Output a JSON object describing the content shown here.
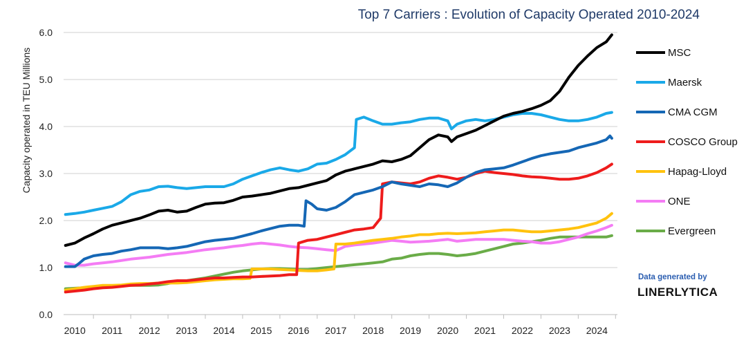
{
  "chart_data": {
    "type": "line",
    "title": "Top 7 Carriers : Evolution of Capacity Operated 2010-2024",
    "ylabel": "Capacity operated in TEU Millions",
    "xlabel": "",
    "ylim": [
      0,
      6
    ],
    "xlim": [
      2009.7,
      2024.55
    ],
    "yticks": [
      "0.0",
      "1.0",
      "2.0",
      "3.0",
      "4.0",
      "5.0",
      "6.0"
    ],
    "xticks": [
      "2010",
      "2011",
      "2012",
      "2013",
      "2014",
      "2015",
      "2016",
      "2017",
      "2018",
      "2019",
      "2020",
      "2021",
      "2022",
      "2023",
      "2024"
    ],
    "grid": "horizontal",
    "legend_position": "right",
    "series": [
      {
        "name": "MSC",
        "color": "#000000",
        "x": [
          2009.75,
          2010.0,
          2010.25,
          2010.5,
          2010.75,
          2011.0,
          2011.25,
          2011.5,
          2011.75,
          2012.0,
          2012.25,
          2012.5,
          2012.75,
          2013.0,
          2013.25,
          2013.5,
          2013.75,
          2014.0,
          2014.25,
          2014.5,
          2014.75,
          2015.0,
          2015.25,
          2015.5,
          2015.75,
          2016.0,
          2016.25,
          2016.5,
          2016.75,
          2017.0,
          2017.25,
          2017.5,
          2017.75,
          2018.0,
          2018.25,
          2018.5,
          2018.75,
          2019.0,
          2019.25,
          2019.5,
          2019.75,
          2020.0,
          2020.1,
          2020.25,
          2020.5,
          2020.75,
          2021.0,
          2021.25,
          2021.5,
          2021.75,
          2022.0,
          2022.25,
          2022.5,
          2022.75,
          2023.0,
          2023.25,
          2023.5,
          2023.75,
          2024.0,
          2024.25,
          2024.4
        ],
        "values": [
          1.47,
          1.52,
          1.63,
          1.72,
          1.82,
          1.9,
          1.95,
          2.0,
          2.05,
          2.12,
          2.2,
          2.22,
          2.18,
          2.2,
          2.28,
          2.35,
          2.37,
          2.38,
          2.43,
          2.5,
          2.52,
          2.55,
          2.58,
          2.63,
          2.68,
          2.7,
          2.75,
          2.8,
          2.85,
          2.97,
          3.05,
          3.1,
          3.15,
          3.2,
          3.27,
          3.25,
          3.3,
          3.38,
          3.55,
          3.72,
          3.82,
          3.78,
          3.68,
          3.78,
          3.85,
          3.92,
          4.02,
          4.12,
          4.22,
          4.28,
          4.32,
          4.38,
          4.45,
          4.55,
          4.75,
          5.05,
          5.3,
          5.5,
          5.68,
          5.8,
          5.95
        ]
      },
      {
        "name": "Maersk",
        "color": "#1aa9e8",
        "x": [
          2009.75,
          2010.0,
          2010.25,
          2010.5,
          2010.75,
          2011.0,
          2011.25,
          2011.5,
          2011.75,
          2012.0,
          2012.25,
          2012.5,
          2012.75,
          2013.0,
          2013.25,
          2013.5,
          2013.75,
          2014.0,
          2014.25,
          2014.5,
          2014.75,
          2015.0,
          2015.25,
          2015.5,
          2015.75,
          2016.0,
          2016.25,
          2016.5,
          2016.75,
          2017.0,
          2017.25,
          2017.5,
          2017.55,
          2017.75,
          2018.0,
          2018.25,
          2018.5,
          2018.75,
          2019.0,
          2019.25,
          2019.5,
          2019.75,
          2020.0,
          2020.1,
          2020.25,
          2020.5,
          2020.75,
          2021.0,
          2021.25,
          2021.5,
          2021.75,
          2022.0,
          2022.25,
          2022.5,
          2022.75,
          2023.0,
          2023.25,
          2023.5,
          2023.75,
          2024.0,
          2024.25,
          2024.4
        ],
        "values": [
          2.13,
          2.15,
          2.18,
          2.22,
          2.26,
          2.3,
          2.4,
          2.55,
          2.62,
          2.65,
          2.72,
          2.73,
          2.7,
          2.68,
          2.7,
          2.72,
          2.72,
          2.72,
          2.78,
          2.88,
          2.95,
          3.02,
          3.08,
          3.12,
          3.08,
          3.05,
          3.1,
          3.2,
          3.22,
          3.3,
          3.4,
          3.55,
          4.15,
          4.2,
          4.12,
          4.05,
          4.05,
          4.08,
          4.1,
          4.15,
          4.18,
          4.18,
          4.12,
          3.95,
          4.05,
          4.12,
          4.15,
          4.12,
          4.15,
          4.2,
          4.25,
          4.28,
          4.28,
          4.25,
          4.2,
          4.15,
          4.12,
          4.12,
          4.15,
          4.2,
          4.28,
          4.3
        ]
      },
      {
        "name": "CMA CGM",
        "color": "#1567b5",
        "x": [
          2009.75,
          2010.0,
          2010.1,
          2010.25,
          2010.5,
          2010.75,
          2011.0,
          2011.25,
          2011.5,
          2011.75,
          2012.0,
          2012.25,
          2012.5,
          2012.75,
          2013.0,
          2013.25,
          2013.5,
          2013.75,
          2014.0,
          2014.25,
          2014.5,
          2014.75,
          2015.0,
          2015.25,
          2015.5,
          2015.75,
          2016.0,
          2016.15,
          2016.2,
          2016.35,
          2016.5,
          2016.75,
          2017.0,
          2017.25,
          2017.5,
          2017.75,
          2018.0,
          2018.25,
          2018.5,
          2018.75,
          2019.0,
          2019.25,
          2019.5,
          2019.75,
          2020.0,
          2020.25,
          2020.5,
          2020.75,
          2021.0,
          2021.25,
          2021.5,
          2021.75,
          2022.0,
          2022.25,
          2022.5,
          2022.75,
          2023.0,
          2023.25,
          2023.5,
          2023.75,
          2024.0,
          2024.25,
          2024.35,
          2024.4
        ],
        "values": [
          1.02,
          1.02,
          1.08,
          1.18,
          1.25,
          1.28,
          1.3,
          1.35,
          1.38,
          1.42,
          1.42,
          1.42,
          1.4,
          1.42,
          1.45,
          1.5,
          1.55,
          1.58,
          1.6,
          1.62,
          1.67,
          1.72,
          1.78,
          1.83,
          1.88,
          1.9,
          1.9,
          1.88,
          2.42,
          2.35,
          2.25,
          2.22,
          2.28,
          2.4,
          2.55,
          2.6,
          2.65,
          2.72,
          2.82,
          2.78,
          2.75,
          2.72,
          2.78,
          2.76,
          2.72,
          2.8,
          2.92,
          3.02,
          3.08,
          3.1,
          3.12,
          3.18,
          3.25,
          3.32,
          3.38,
          3.42,
          3.45,
          3.48,
          3.55,
          3.6,
          3.65,
          3.72,
          3.8,
          3.75
        ]
      },
      {
        "name": "COSCO Group",
        "color": "#ee1c1c",
        "x": [
          2009.75,
          2010.0,
          2010.25,
          2010.5,
          2010.75,
          2011.0,
          2011.25,
          2011.5,
          2011.75,
          2012.0,
          2012.25,
          2012.5,
          2012.75,
          2013.0,
          2013.25,
          2013.5,
          2013.75,
          2014.0,
          2014.25,
          2014.5,
          2014.75,
          2015.0,
          2015.25,
          2015.5,
          2015.75,
          2015.95,
          2016.0,
          2016.25,
          2016.5,
          2016.75,
          2017.0,
          2017.25,
          2017.5,
          2017.75,
          2018.0,
          2018.2,
          2018.25,
          2018.5,
          2018.75,
          2019.0,
          2019.25,
          2019.5,
          2019.75,
          2020.0,
          2020.25,
          2020.5,
          2020.75,
          2021.0,
          2021.25,
          2021.5,
          2021.75,
          2022.0,
          2022.25,
          2022.5,
          2022.75,
          2023.0,
          2023.25,
          2023.5,
          2023.75,
          2024.0,
          2024.25,
          2024.4
        ],
        "values": [
          0.48,
          0.5,
          0.52,
          0.55,
          0.57,
          0.58,
          0.6,
          0.62,
          0.63,
          0.65,
          0.67,
          0.7,
          0.72,
          0.72,
          0.74,
          0.76,
          0.78,
          0.78,
          0.79,
          0.8,
          0.8,
          0.81,
          0.82,
          0.83,
          0.85,
          0.85,
          1.52,
          1.58,
          1.6,
          1.65,
          1.7,
          1.75,
          1.8,
          1.82,
          1.85,
          2.05,
          2.78,
          2.82,
          2.8,
          2.78,
          2.82,
          2.9,
          2.95,
          2.92,
          2.88,
          2.92,
          3.0,
          3.05,
          3.02,
          3.0,
          2.98,
          2.95,
          2.93,
          2.92,
          2.9,
          2.88,
          2.88,
          2.9,
          2.95,
          3.02,
          3.12,
          3.2
        ]
      },
      {
        "name": "Hapag-Lloyd",
        "color": "#ffc20e",
        "x": [
          2009.75,
          2010.0,
          2010.25,
          2010.5,
          2010.75,
          2011.0,
          2011.25,
          2011.5,
          2011.75,
          2012.0,
          2012.25,
          2012.5,
          2012.75,
          2013.0,
          2013.25,
          2013.5,
          2013.75,
          2014.0,
          2014.25,
          2014.5,
          2014.7,
          2014.75,
          2015.0,
          2015.25,
          2015.5,
          2015.75,
          2016.0,
          2016.25,
          2016.5,
          2016.75,
          2016.95,
          2017.0,
          2017.25,
          2017.5,
          2017.75,
          2018.0,
          2018.25,
          2018.5,
          2018.75,
          2019.0,
          2019.25,
          2019.5,
          2019.75,
          2020.0,
          2020.25,
          2020.5,
          2020.75,
          2021.0,
          2021.25,
          2021.5,
          2021.75,
          2022.0,
          2022.25,
          2022.5,
          2022.75,
          2023.0,
          2023.25,
          2023.5,
          2023.75,
          2024.0,
          2024.25,
          2024.4
        ],
        "values": [
          0.52,
          0.55,
          0.58,
          0.6,
          0.62,
          0.62,
          0.63,
          0.65,
          0.66,
          0.66,
          0.67,
          0.67,
          0.67,
          0.68,
          0.7,
          0.72,
          0.74,
          0.75,
          0.76,
          0.76,
          0.77,
          0.97,
          0.97,
          0.97,
          0.96,
          0.95,
          0.94,
          0.93,
          0.93,
          0.95,
          0.97,
          1.5,
          1.5,
          1.52,
          1.55,
          1.58,
          1.6,
          1.62,
          1.65,
          1.67,
          1.7,
          1.7,
          1.72,
          1.73,
          1.72,
          1.73,
          1.74,
          1.76,
          1.78,
          1.8,
          1.8,
          1.78,
          1.76,
          1.76,
          1.78,
          1.8,
          1.82,
          1.85,
          1.9,
          1.95,
          2.05,
          2.15
        ]
      },
      {
        "name": "ONE",
        "color": "#f47cf4",
        "x": [
          2009.75,
          2010.0,
          2010.25,
          2010.5,
          2010.75,
          2011.0,
          2011.25,
          2011.5,
          2011.75,
          2012.0,
          2012.25,
          2012.5,
          2012.75,
          2013.0,
          2013.25,
          2013.5,
          2013.75,
          2014.0,
          2014.25,
          2014.5,
          2014.75,
          2015.0,
          2015.25,
          2015.5,
          2015.75,
          2016.0,
          2016.25,
          2016.5,
          2016.75,
          2017.0,
          2017.25,
          2017.5,
          2017.75,
          2018.0,
          2018.25,
          2018.5,
          2018.75,
          2019.0,
          2019.25,
          2019.5,
          2019.75,
          2020.0,
          2020.25,
          2020.5,
          2020.75,
          2021.0,
          2021.25,
          2021.5,
          2021.75,
          2022.0,
          2022.25,
          2022.5,
          2022.75,
          2023.0,
          2023.25,
          2023.5,
          2023.75,
          2024.0,
          2024.25,
          2024.4
        ],
        "values": [
          1.1,
          1.05,
          1.05,
          1.08,
          1.1,
          1.12,
          1.15,
          1.18,
          1.2,
          1.22,
          1.25,
          1.28,
          1.3,
          1.32,
          1.35,
          1.38,
          1.4,
          1.42,
          1.45,
          1.47,
          1.5,
          1.52,
          1.5,
          1.48,
          1.45,
          1.43,
          1.42,
          1.4,
          1.38,
          1.36,
          1.45,
          1.48,
          1.5,
          1.52,
          1.55,
          1.58,
          1.56,
          1.54,
          1.55,
          1.56,
          1.58,
          1.6,
          1.56,
          1.58,
          1.6,
          1.6,
          1.6,
          1.6,
          1.58,
          1.56,
          1.55,
          1.52,
          1.52,
          1.55,
          1.6,
          1.65,
          1.72,
          1.78,
          1.85,
          1.9
        ]
      },
      {
        "name": "Evergreen",
        "color": "#6aac48",
        "x": [
          2009.75,
          2010.0,
          2010.25,
          2010.5,
          2010.75,
          2011.0,
          2011.25,
          2011.5,
          2011.75,
          2012.0,
          2012.25,
          2012.5,
          2012.75,
          2013.0,
          2013.25,
          2013.5,
          2013.75,
          2014.0,
          2014.25,
          2014.5,
          2014.75,
          2015.0,
          2015.25,
          2015.5,
          2015.75,
          2016.0,
          2016.25,
          2016.5,
          2016.75,
          2017.0,
          2017.25,
          2017.5,
          2017.75,
          2018.0,
          2018.25,
          2018.5,
          2018.75,
          2019.0,
          2019.25,
          2019.5,
          2019.75,
          2020.0,
          2020.25,
          2020.5,
          2020.75,
          2021.0,
          2021.25,
          2021.5,
          2021.75,
          2022.0,
          2022.25,
          2022.5,
          2022.75,
          2023.0,
          2023.25,
          2023.5,
          2023.75,
          2024.0,
          2024.25,
          2024.4
        ],
        "values": [
          0.55,
          0.56,
          0.57,
          0.58,
          0.6,
          0.61,
          0.62,
          0.62,
          0.62,
          0.62,
          0.63,
          0.66,
          0.7,
          0.72,
          0.75,
          0.78,
          0.82,
          0.86,
          0.9,
          0.93,
          0.95,
          0.97,
          0.98,
          0.98,
          0.97,
          0.96,
          0.96,
          0.98,
          1.0,
          1.02,
          1.04,
          1.06,
          1.08,
          1.1,
          1.12,
          1.18,
          1.2,
          1.25,
          1.28,
          1.3,
          1.3,
          1.28,
          1.25,
          1.27,
          1.3,
          1.35,
          1.4,
          1.45,
          1.5,
          1.52,
          1.55,
          1.58,
          1.62,
          1.65,
          1.65,
          1.65,
          1.65,
          1.65,
          1.65,
          1.68
        ]
      }
    ]
  },
  "credit": {
    "line1": "Data generated by",
    "line2": "LINERLYTICA"
  }
}
